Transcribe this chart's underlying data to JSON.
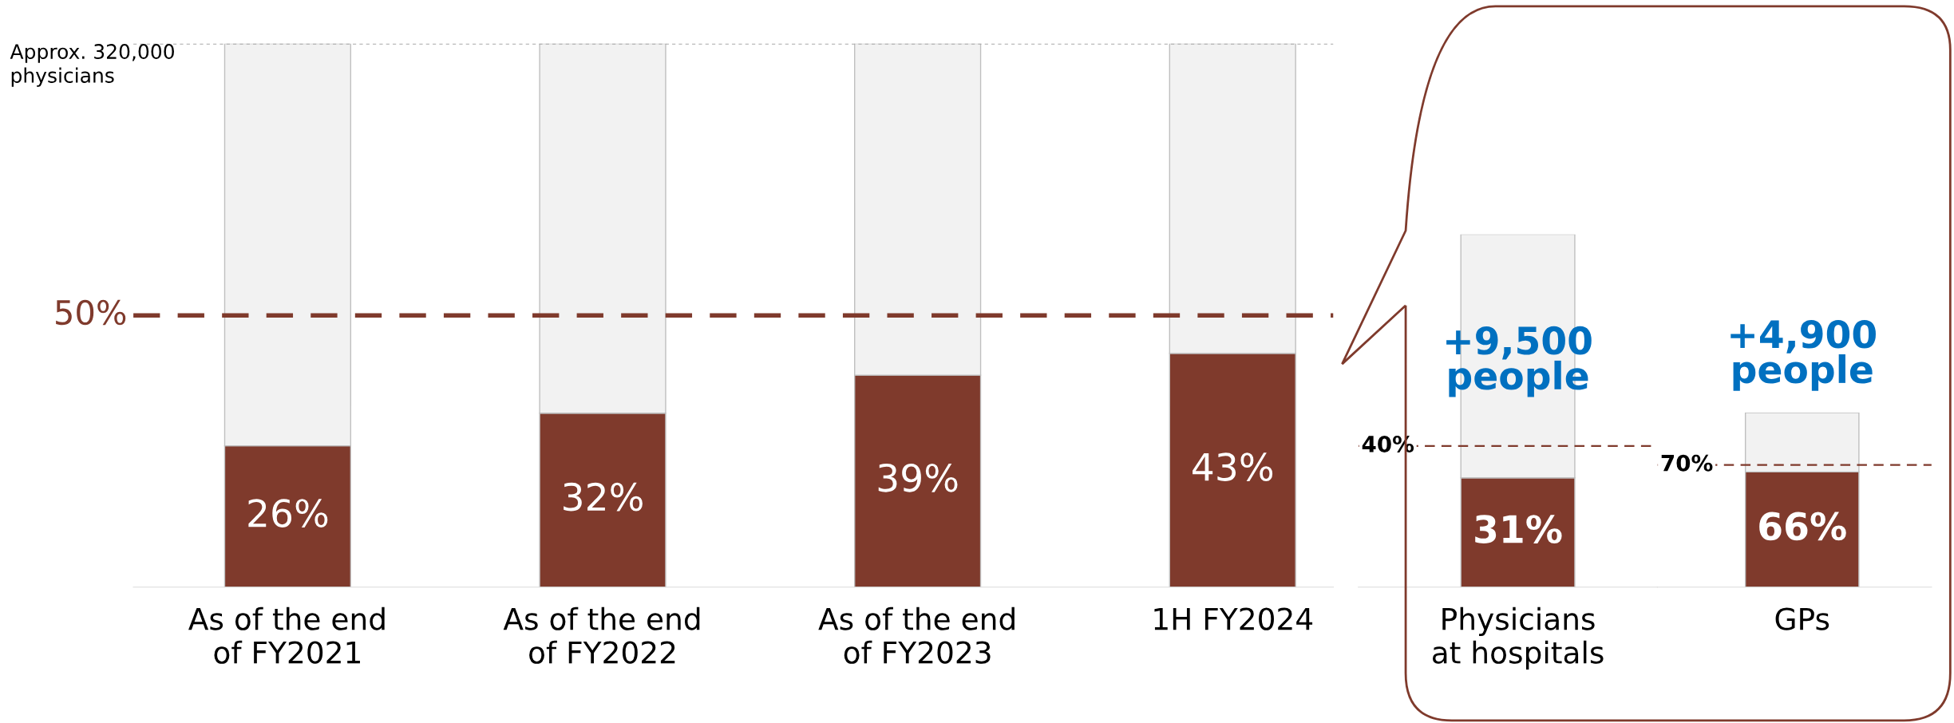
{
  "chart_data": [
    {
      "type": "bar",
      "stacked": true,
      "legend": false,
      "grid": false,
      "tick_labels": "x",
      "categories": [
        "As of the end\nof FY2021",
        "As of the end\nof FY2022",
        "As of the end\nof FY2023",
        "1H FY2024"
      ],
      "series": [
        {
          "color": "#7f3a2c",
          "values": [
            26,
            32,
            39,
            43
          ],
          "value_labels": [
            "26%",
            "32%",
            "39%",
            "43%"
          ]
        },
        {
          "color": "#f2f2f2",
          "values": [
            74,
            68,
            61,
            57
          ]
        }
      ],
      "ylim": [
        0,
        100
      ],
      "ref_lines": [
        {
          "axis": "y",
          "value": 50,
          "label": "50%",
          "color": "#7f3a2c",
          "line_style": "dashed"
        },
        {
          "axis": "y",
          "value": 100,
          "color": "#a6a6a6",
          "line_style": "dotted"
        }
      ],
      "annotations": [
        "Approx. 320,000\nphysicians"
      ]
    },
    {
      "type": "bar",
      "stacked": true,
      "legend": false,
      "grid": false,
      "tick_labels": "x",
      "categories": [
        "Physicians\nat hospitals"
      ],
      "series": [
        {
          "color": "#7f3a2c",
          "values": [
            31
          ],
          "value_labels": [
            "31%"
          ]
        },
        {
          "color": "#f2f2f2",
          "values": [
            69
          ]
        }
      ],
      "ylim": [
        0,
        100
      ],
      "ref_lines": [
        {
          "axis": "y",
          "value": 40,
          "label": "40%",
          "color": "#7f3a2c",
          "line_style": "dashed"
        }
      ],
      "annotations": [
        "+9,500\npeople"
      ]
    },
    {
      "type": "bar",
      "stacked": true,
      "legend": false,
      "grid": false,
      "tick_labels": "x",
      "categories": [
        "GPs"
      ],
      "series": [
        {
          "color": "#7f3a2c",
          "values": [
            66
          ],
          "value_labels": [
            "66%"
          ]
        },
        {
          "color": "#f2f2f2",
          "values": [
            34
          ]
        }
      ],
      "ylim": [
        0,
        100
      ],
      "ref_lines": [
        {
          "axis": "y",
          "value": 70,
          "label": "70%",
          "color": "#7f3a2c",
          "line_style": "dashed"
        }
      ],
      "annotations": [
        "+4,900\npeople"
      ]
    }
  ]
}
